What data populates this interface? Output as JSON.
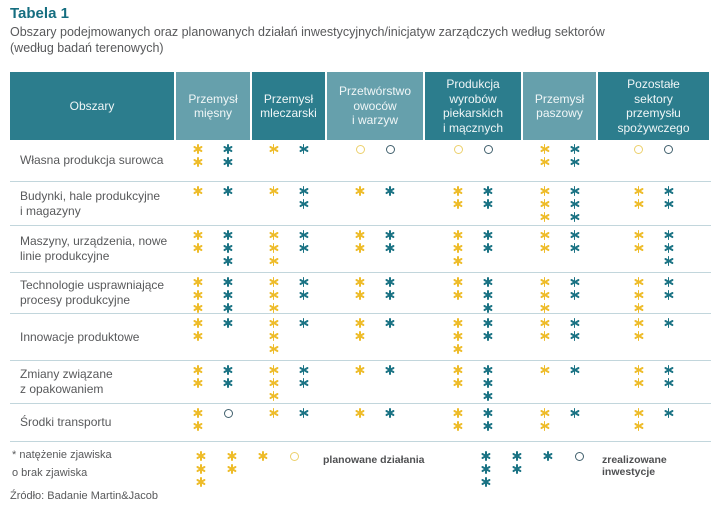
{
  "title": "Tabela 1",
  "subtitle": "Obszary podejmowanych oraz planowanych działań inwestycyjnych/inicjatyw zarządczych według sektorów\n(według badań terenowych)",
  "colors": {
    "dark_teal": "#2c7d8d",
    "light_teal": "#66a0ac",
    "title_teal": "#156e80",
    "text_gray": "#58595b",
    "separator_line": "#c2d6dc",
    "planned_yellow": "#eebc2a",
    "realized_teal": "#1b7384",
    "planned_ring_yellow": "#ecd06b",
    "realized_ring_teal": "#41606d"
  },
  "table": {
    "corner_header": "Obszary",
    "sector_headers": [
      "Przemysł\nmięsny",
      "Przemysł\nmleczarski",
      "Przetwórstwo\nowoców\ni warzyw",
      "Produkcja\nwyrobów\npiekarskich\ni mącznych",
      "Przemysł\npaszowy",
      "Pozostałe\nsektory\nprzemysłu\nspożywczego"
    ],
    "symbol_legend": {
      "asterisk_means": "natężenie zjawiska",
      "circle_means": "brak zjawiska"
    },
    "rows": [
      {
        "label": "Własna produkcja surowca",
        "cells": [
          {
            "planned": "**",
            "realized": "**"
          },
          {
            "planned": "*",
            "realized": "*"
          },
          {
            "planned": "o",
            "realized": "o"
          },
          {
            "planned": "o",
            "realized": "o"
          },
          {
            "planned": "**",
            "realized": "**"
          },
          {
            "planned": "o",
            "realized": "o"
          }
        ]
      },
      {
        "label": "Budynki, hale produkcyjne\ni magazyny",
        "cells": [
          {
            "planned": "*",
            "realized": "*"
          },
          {
            "planned": "*",
            "realized": "**"
          },
          {
            "planned": "*",
            "realized": "*"
          },
          {
            "planned": "**",
            "realized": "**"
          },
          {
            "planned": "***",
            "realized": "***"
          },
          {
            "planned": "**",
            "realized": "**"
          }
        ]
      },
      {
        "label": "Maszyny, urządzenia, nowe\nlinie produkcyjne",
        "cells": [
          {
            "planned": "**",
            "realized": "***"
          },
          {
            "planned": "***",
            "realized": "**"
          },
          {
            "planned": "**",
            "realized": "**"
          },
          {
            "planned": "***",
            "realized": "**"
          },
          {
            "planned": "**",
            "realized": "**"
          },
          {
            "planned": "**",
            "realized": "***"
          }
        ]
      },
      {
        "label": "Technologie usprawniające\nprocesy produkcyjne",
        "cells": [
          {
            "planned": "***",
            "realized": "***"
          },
          {
            "planned": "***",
            "realized": "**"
          },
          {
            "planned": "**",
            "realized": "**"
          },
          {
            "planned": "**",
            "realized": "***"
          },
          {
            "planned": "***",
            "realized": "**"
          },
          {
            "planned": "***",
            "realized": "**"
          }
        ]
      },
      {
        "label": "Innowacje produktowe",
        "cells": [
          {
            "planned": "**",
            "realized": "*"
          },
          {
            "planned": "***",
            "realized": "*"
          },
          {
            "planned": "**",
            "realized": "*"
          },
          {
            "planned": "***",
            "realized": "**"
          },
          {
            "planned": "**",
            "realized": "**"
          },
          {
            "planned": "**",
            "realized": "*"
          }
        ]
      },
      {
        "label": "Zmiany związane\nz opakowaniem",
        "cells": [
          {
            "planned": "**",
            "realized": "**"
          },
          {
            "planned": "***",
            "realized": "**"
          },
          {
            "planned": "*",
            "realized": "*"
          },
          {
            "planned": "**",
            "realized": "***"
          },
          {
            "planned": "*",
            "realized": "*"
          },
          {
            "planned": "**",
            "realized": "**"
          }
        ]
      },
      {
        "label": "Środki transportu",
        "cells": [
          {
            "planned": "**",
            "realized": "o"
          },
          {
            "planned": "*",
            "realized": "*"
          },
          {
            "planned": "*",
            "realized": "*"
          },
          {
            "planned": "**",
            "realized": "**"
          },
          {
            "planned": "**",
            "realized": "*"
          },
          {
            "planned": "**",
            "realized": "*"
          }
        ]
      }
    ]
  },
  "legend": {
    "footnote": "* natężenie zjawiska\no brak zjawiska",
    "planned": {
      "label": "planowane działania",
      "scale": [
        "***",
        "**",
        "*",
        "o"
      ]
    },
    "realized": {
      "label": "zrealizowane inwestycje",
      "scale": [
        "***",
        "**",
        "*",
        "o"
      ]
    }
  },
  "source": "Źródło: Badanie Martin&Jacob"
}
